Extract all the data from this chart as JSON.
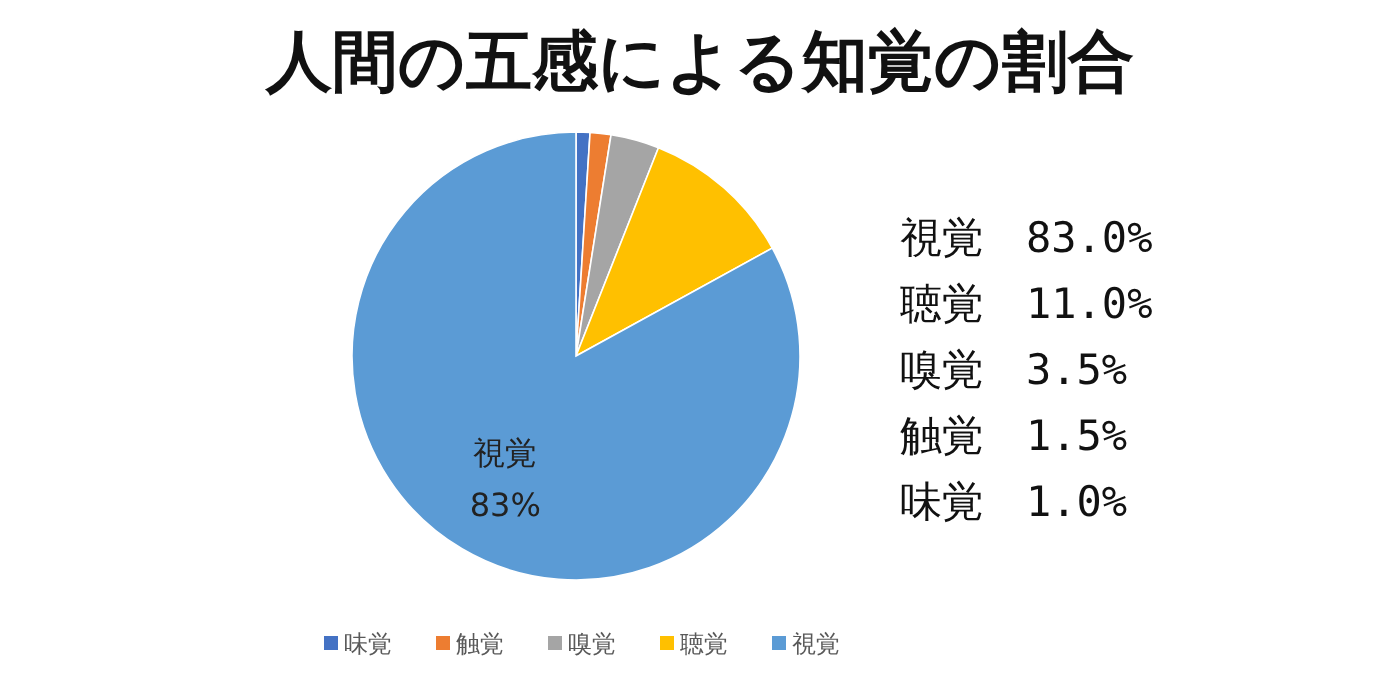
{
  "chart_data": {
    "type": "pie",
    "title": "人間の五感による知覚の割合",
    "categories": [
      "味覚",
      "触覚",
      "嗅覚",
      "聴覚",
      "視覚"
    ],
    "values": [
      1.0,
      1.5,
      3.5,
      11.0,
      83.0
    ],
    "colors": [
      "#4472c4",
      "#ed7d31",
      "#a5a5a5",
      "#ffc000",
      "#5b9bd5"
    ],
    "value_labels": [
      null,
      null,
      null,
      null,
      "83%"
    ],
    "annotations": [
      "視覚　83.0%",
      "聴覚　11.0%",
      "嗅覚　3.5%",
      "触覚　1.5%",
      "味覚　1.0%"
    ],
    "legend": "bottom"
  }
}
